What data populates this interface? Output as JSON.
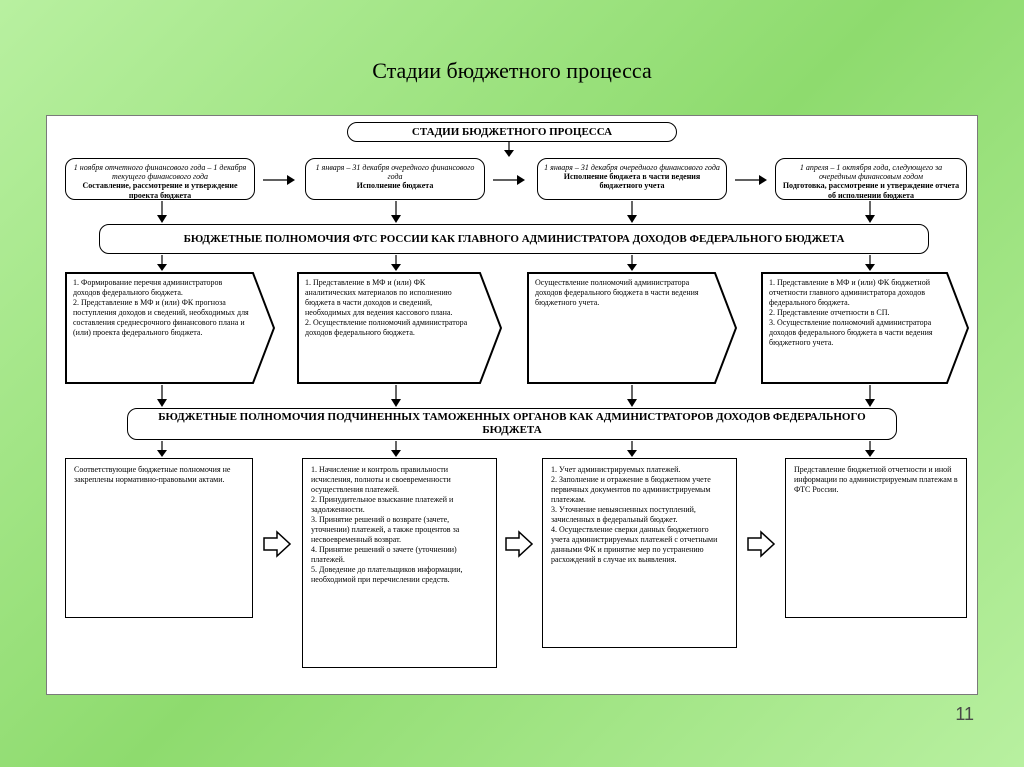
{
  "slide_title": "Стадии бюджетного процесса",
  "page_number": "11",
  "colors": {
    "bg_grad_a": "#b8f0a0",
    "bg_grad_b": "#8edb6e",
    "frame_border": "#7a7a7a",
    "line": "#000000"
  },
  "header_main": "СТАДИИ БЮДЖЕТНОГО ПРОЦЕССА",
  "stages": [
    {
      "period": "1 ноября отчетного финансового года – 1 декабря текущего финансового года",
      "title": "Составление, рассмотрение и утверждение проекта бюджета"
    },
    {
      "period": "1 января – 31 декабря очередного финансового года",
      "title": "Исполнение бюджета"
    },
    {
      "period": "1 января – 31 декабря очередного финансового года",
      "title": "Исполнение бюджета в части ведения бюджетного учета"
    },
    {
      "period": "1 апреля – 1 октября года, следующего за очередным финансовым годом",
      "title": "Подготовка, рассмотрение и утверждение отчета об исполнении бюджета"
    }
  ],
  "header_fts": "БЮДЖЕТНЫЕ ПОЛНОМОЧИЯ ФТС РОССИИ КАК ГЛАВНОГО АДМИНИСТРАТОРА ДОХОДОВ ФЕДЕРАЛЬНОГО БЮДЖЕТА",
  "fts_boxes": [
    "1. Формирование перечня администраторов доходов федерального бюджета.\n2. Представление в МФ и (или) ФК прогноза поступления доходов и сведений, необходимых для составления среднесрочного финансового плана и (или) проекта федерального бюджета.",
    "1. Представление в МФ и (или) ФК аналитических материалов по исполнению бюджета в части доходов и сведений, необходимых для ведения кассового плана.\n2. Осуществление полномочий администратора доходов федерального бюджета.",
    "Осуществление полномочий администратора доходов федерального бюджета в части ведения бюджетного учета.",
    "1. Представление в МФ и (или) ФК бюджетной отчетности главного администратора доходов федерального бюджета.\n2. Представление отчетности в СП.\n3. Осуществление полномочий администратора доходов федерального бюджета в части ведения бюджетного учета."
  ],
  "header_sub": "БЮДЖЕТНЫЕ ПОЛНОМОЧИЯ ПОДЧИНЕННЫХ ТАМОЖЕННЫХ ОРГАНОВ КАК АДМИНИСТРАТОРОВ ДОХОДОВ ФЕДЕРАЛЬНОГО БЮДЖЕТА",
  "sub_boxes": [
    "Соответствующие бюджетные полномочия не закреплены нормативно-правовыми актами.",
    "1. Начисление и контроль правильности исчисления, полноты и своевременности осуществления платежей.\n2. Принудительное взыскание платежей и задолженности.\n3. Принятие решений о возврате (зачете, уточнении) платежей, а также процентов за несвоевременный возврат.\n4. Принятие решений о зачете (уточнении) платежей.\n5. Доведение до плательщиков информации, необходимой при перечислении средств.",
    "1. Учет администрируемых платежей.\n2. Заполнение и отражение в бюджетном учете первичных документов по администрируемым платежам.\n3. Уточнение невыясненных поступлений, зачисленных в федеральный бюджет.\n4. Осуществление сверки данных бюджетного учета администрируемых платежей с отчетными данными ФК и принятие мер по устранению расхождений в случае их выявления.",
    "Представление бюджетной отчетности и иной информации по администрируемым платежам в ФТС России."
  ]
}
